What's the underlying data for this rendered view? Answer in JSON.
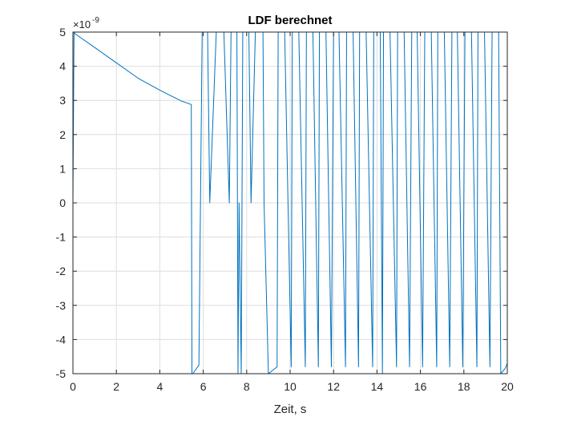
{
  "chart_data": {
    "type": "line",
    "title": "LDF berechnet",
    "xlabel": "Zeit, s",
    "ylabel": "",
    "y_exponent": {
      "base": "×10",
      "power": "-9"
    },
    "xlim": [
      0,
      20
    ],
    "ylim": [
      -5,
      5
    ],
    "x_ticks": [
      0,
      2,
      4,
      6,
      8,
      10,
      12,
      14,
      16,
      18,
      20
    ],
    "y_ticks": [
      -5,
      -4,
      -3,
      -2,
      -1,
      0,
      1,
      2,
      3,
      4,
      5
    ],
    "x_tick_labels": [
      "0",
      "2",
      "4",
      "6",
      "8",
      "10",
      "12",
      "14",
      "16",
      "18",
      "20"
    ],
    "y_tick_labels": [
      "-5",
      "-4",
      "-3",
      "-2",
      "-1",
      "0",
      "1",
      "2",
      "3",
      "4",
      "5"
    ],
    "grid": true,
    "series": [
      {
        "color": "#0072bd",
        "x": [
          0,
          0.05,
          0.1,
          1,
          2,
          3,
          4,
          5,
          5.45,
          5.48,
          5.52,
          5.8,
          5.95,
          6.2,
          6.3,
          6.6,
          6.95,
          7.2,
          7.28,
          7.55,
          7.6,
          7.65,
          7.75,
          7.82,
          8.1,
          8.2,
          8.4,
          8.75,
          8.8,
          9.0,
          9.4,
          9.45,
          9.75,
          10.05,
          10.1,
          10.4,
          10.7,
          10.75,
          11.05,
          11.3,
          11.35,
          11.65,
          11.9,
          12.0,
          12.25,
          12.55,
          12.6,
          12.9,
          13.15,
          13.2,
          13.5,
          13.8,
          13.85,
          14.15,
          14.2,
          14.25,
          14.3,
          14.6,
          14.9,
          14.95,
          15.25,
          15.5,
          15.6,
          15.85,
          16.1,
          16.2,
          16.5,
          16.75,
          16.8,
          17.1,
          17.35,
          17.45,
          17.7,
          17.95,
          18.05,
          18.35,
          18.6,
          18.65,
          18.95,
          19.2,
          19.3,
          19.6,
          19.65,
          19.7,
          19.9,
          20.0
        ],
        "y": [
          0,
          5,
          4.95,
          4.55,
          4.1,
          3.65,
          3.3,
          2.98,
          2.88,
          -5,
          -5,
          -4.75,
          5,
          5,
          0,
          5,
          5,
          0,
          5,
          5,
          -5,
          0,
          -5,
          5,
          5,
          0,
          5,
          5,
          0,
          -5,
          -4.8,
          5,
          5,
          -4.8,
          5,
          5,
          -4.8,
          5,
          5,
          -4.8,
          5,
          5,
          -4.8,
          5,
          5,
          -4.8,
          5,
          5,
          -4.8,
          5,
          5,
          -4.8,
          5,
          5,
          0,
          -5,
          5,
          5,
          -4.8,
          5,
          5,
          -4.8,
          5,
          5,
          -4.8,
          5,
          5,
          -4.8,
          5,
          5,
          -4.8,
          5,
          5,
          -4.8,
          5,
          5,
          -4.8,
          5,
          5,
          -4.8,
          5,
          5,
          0,
          -5,
          -4.85,
          -4.7
        ]
      }
    ]
  }
}
